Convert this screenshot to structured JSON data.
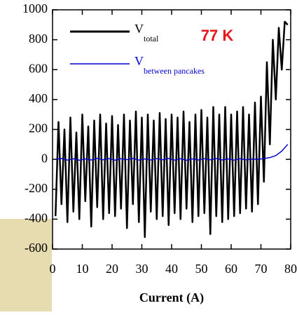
{
  "chart_data": {
    "type": "line",
    "xlabel": "Current (A)",
    "annotation": "77 K",
    "xlim": [
      0,
      80
    ],
    "xticks": [
      0,
      10,
      20,
      30,
      40,
      50,
      60,
      70,
      80
    ],
    "ylim": [
      -600,
      1000
    ],
    "yticks": [
      -600,
      -400,
      -200,
      0,
      200,
      400,
      600,
      800,
      1000
    ],
    "series": [
      {
        "name": "V",
        "name_sub": "total",
        "color": "#000000",
        "x": [
          1,
          2,
          3,
          4,
          5,
          6,
          7,
          8,
          9,
          10,
          11,
          12,
          13,
          14,
          15,
          16,
          17,
          18,
          19,
          20,
          21,
          22,
          23,
          24,
          25,
          26,
          27,
          28,
          29,
          30,
          31,
          32,
          33,
          34,
          35,
          36,
          37,
          38,
          39,
          40,
          41,
          42,
          43,
          44,
          45,
          46,
          47,
          48,
          49,
          50,
          51,
          52,
          53,
          54,
          55,
          56,
          57,
          58,
          59,
          60,
          61,
          62,
          63,
          64,
          65,
          66,
          67,
          68,
          69,
          70,
          71,
          72,
          73,
          74,
          75,
          76,
          77,
          78,
          79
        ],
        "values": [
          -380,
          250,
          -300,
          200,
          -420,
          280,
          -350,
          180,
          -400,
          300,
          -280,
          220,
          -450,
          260,
          -320,
          300,
          -400,
          240,
          -360,
          290,
          -380,
          230,
          -330,
          300,
          -460,
          260,
          -300,
          320,
          -420,
          280,
          -520,
          300,
          -350,
          260,
          -400,
          310,
          -380,
          270,
          -440,
          300,
          -360,
          280,
          -400,
          320,
          -330,
          250,
          -420,
          300,
          -380,
          330,
          -360,
          280,
          -500,
          350,
          -380,
          300,
          -420,
          350,
          -400,
          300,
          -380,
          320,
          -360,
          350,
          -330,
          300,
          -350,
          380,
          -300,
          420,
          -150,
          650,
          100,
          800,
          400,
          880,
          600,
          920,
          900
        ]
      },
      {
        "name": "V",
        "name_sub": "between pancakes",
        "color": "#0000cc",
        "x": [
          1,
          3,
          5,
          7,
          9,
          11,
          13,
          15,
          17,
          19,
          21,
          23,
          25,
          27,
          29,
          31,
          33,
          35,
          37,
          39,
          41,
          43,
          45,
          47,
          49,
          51,
          53,
          55,
          57,
          59,
          61,
          63,
          65,
          67,
          69,
          71,
          73,
          75,
          77,
          79
        ],
        "values": [
          0,
          6,
          -5,
          4,
          -6,
          3,
          -4,
          7,
          -3,
          5,
          -6,
          4,
          -2,
          6,
          -5,
          3,
          -4,
          5,
          -3,
          6,
          -5,
          4,
          -6,
          3,
          -4,
          5,
          -3,
          6,
          -4,
          3,
          -5,
          4,
          -3,
          2,
          0,
          5,
          12,
          25,
          55,
          100
        ]
      }
    ]
  }
}
